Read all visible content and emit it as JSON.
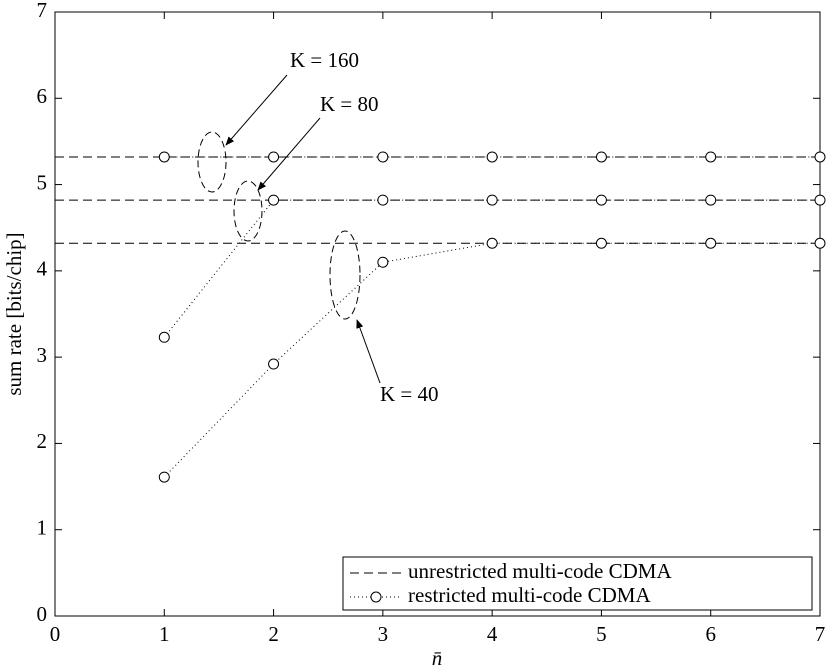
{
  "chart_data": {
    "type": "line",
    "xlabel": "n̄",
    "ylabel": "sum rate [bits/chip]",
    "xlim": [
      0,
      7
    ],
    "ylim": [
      0,
      7
    ],
    "xticks": [
      0,
      1,
      2,
      3,
      4,
      5,
      6,
      7
    ],
    "yticks": [
      0,
      1,
      2,
      3,
      4,
      5,
      6,
      7
    ],
    "grid": false,
    "legend_position": "lower right",
    "series": [
      {
        "name": "unrestricted multi-code CDMA",
        "color": "#000000",
        "style": "dashed",
        "x": [
          0,
          7
        ],
        "lines": [
          [
            5.32,
            5.32
          ],
          [
            4.82,
            4.82
          ],
          [
            4.32,
            4.32
          ]
        ]
      },
      {
        "name": "restricted multi-code CDMA",
        "color": "#000000",
        "style": "dotted",
        "marker": "circle",
        "x": [
          1,
          2,
          3,
          4,
          5,
          6,
          7
        ],
        "lines": [
          [
            5.32,
            5.32,
            5.32,
            5.32,
            5.32,
            5.32,
            5.32
          ],
          [
            3.23,
            4.82,
            4.82,
            4.82,
            4.82,
            4.82,
            4.82
          ],
          [
            1.61,
            2.92,
            4.1,
            4.32,
            4.32,
            4.32,
            4.32
          ]
        ]
      }
    ],
    "annotations": [
      "K = 160",
      "K = 80",
      "K = 40"
    ]
  }
}
